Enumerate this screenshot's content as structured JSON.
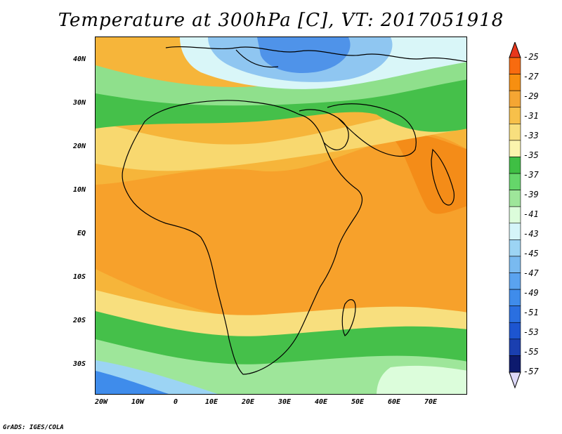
{
  "title": "Temperature at 300hPa [C], VT: 2017051918",
  "footer": "GrADS: IGES/COLA",
  "lat_labels": [
    "40N",
    "30N",
    "20N",
    "10N",
    "EQ",
    "10S",
    "20S",
    "30S"
  ],
  "lon_labels": [
    "20W",
    "10W",
    "0",
    "10E",
    "20E",
    "30E",
    "40E",
    "50E",
    "60E",
    "70E"
  ],
  "colorbar": {
    "labels": [
      "-25",
      "-27",
      "-29",
      "-31",
      "-33",
      "-35",
      "-37",
      "-39",
      "-41",
      "-43",
      "-45",
      "-47",
      "-49",
      "-51",
      "-53",
      "-55",
      "-57"
    ],
    "colors": [
      "#e8371c",
      "#f86b0f",
      "#f78f10",
      "#f5a633",
      "#f7c04a",
      "#f8df7e",
      "#fbf4ad",
      "#3fbf44",
      "#65d66a",
      "#9ee69a",
      "#dcfddb",
      "#d5f5f9",
      "#9cd4f4",
      "#79baf0",
      "#5aa3ef",
      "#3f8ceb",
      "#2a6fe0",
      "#1d55d0",
      "#1a3fb0",
      "#0d1a6e",
      "#dcd8f8"
    ],
    "arrow_top_color": "#e8371c",
    "arrow_bottom_color": "#dcd8f8"
  }
}
